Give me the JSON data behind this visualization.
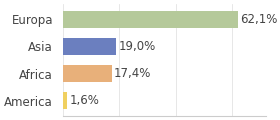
{
  "categories": [
    "Europa",
    "Asia",
    "Africa",
    "America"
  ],
  "values": [
    62.1,
    19.0,
    17.4,
    1.6
  ],
  "labels": [
    "62,1%",
    "19,0%",
    "17,4%",
    "1,6%"
  ],
  "bar_colors": [
    "#b5c99a",
    "#6b7fbf",
    "#e8b07a",
    "#f0d060"
  ],
  "background_color": "#ffffff",
  "xlim": [
    0,
    72
  ],
  "label_fontsize": 8.5,
  "tick_fontsize": 8.5,
  "bar_height": 0.62
}
